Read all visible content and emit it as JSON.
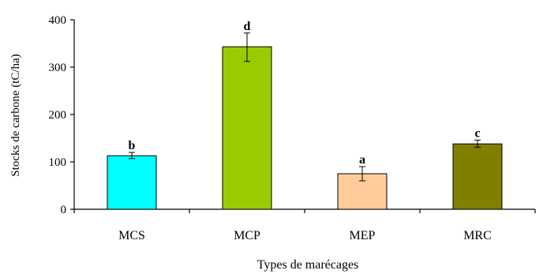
{
  "chart_data": {
    "type": "bar",
    "title": "",
    "xlabel": "Types de marécages",
    "ylabel": "Stocks de carbone (tC/ha)",
    "ylim": [
      0,
      400
    ],
    "yticks": [
      "0",
      "100",
      "200",
      "300",
      "400"
    ],
    "grid": false,
    "categories": [
      "MCS",
      "MCP",
      "MEP",
      "MRC"
    ],
    "values": [
      113,
      343,
      75,
      138
    ],
    "error_low": [
      107,
      312,
      60,
      131
    ],
    "error_high": [
      120,
      372,
      90,
      146
    ],
    "letters": [
      "b",
      "d",
      "a",
      "c"
    ],
    "colors": [
      "#00FFFF",
      "#99CC00",
      "#FFCC99",
      "#808000"
    ]
  }
}
